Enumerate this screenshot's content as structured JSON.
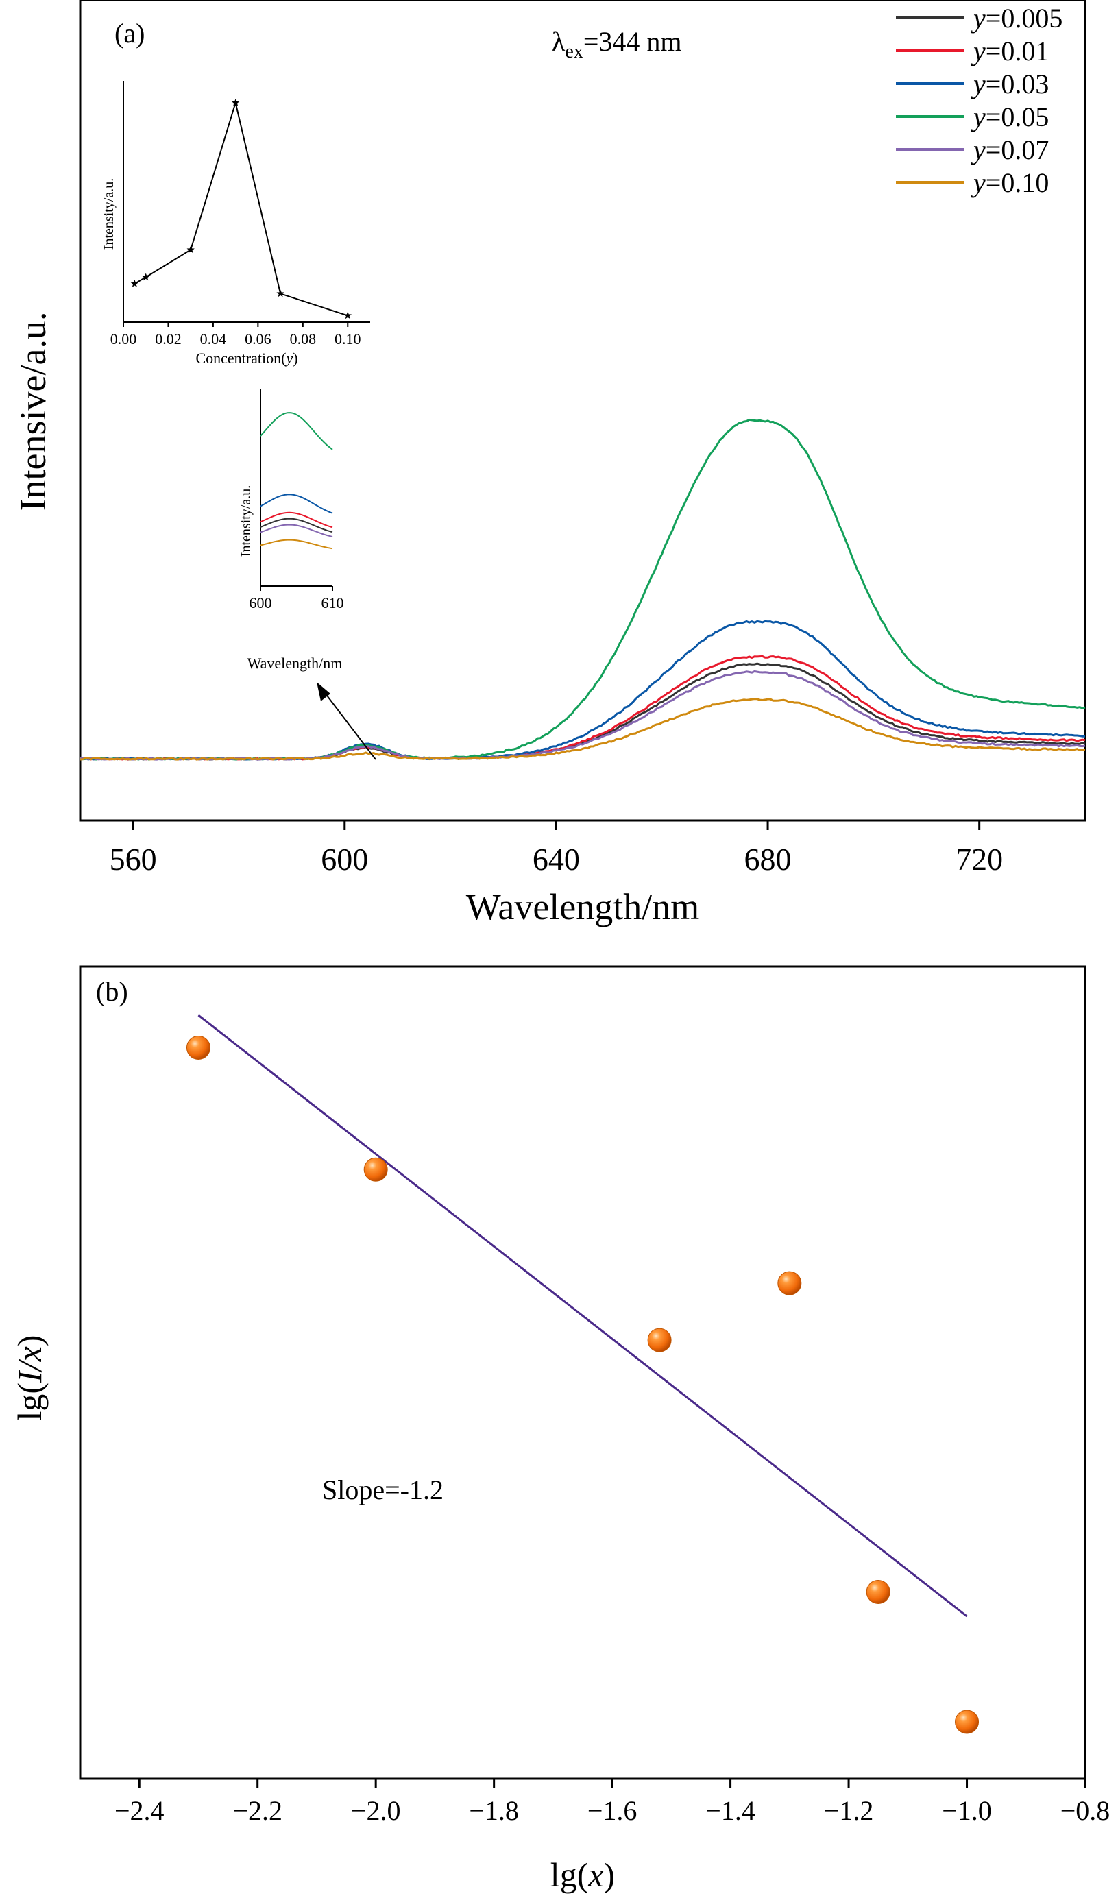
{
  "chart_data": [
    {
      "panel_label": "(a)",
      "type": "line",
      "xlabel": "Wavelength/nm",
      "ylabel": "Intensive/a.u.",
      "xlim": [
        550,
        740
      ],
      "x_ticks": [
        560,
        600,
        640,
        680,
        720
      ],
      "y_ticks_shown": false,
      "annotation": {
        "lambda": "λ",
        "sub": "ex",
        "rest": "=344 nm"
      },
      "legend_position": "top-right",
      "legend_prefix": "y",
      "series": [
        {
          "name": "=0.005",
          "color": "#333333",
          "amp": 0.51,
          "tail": 0.125,
          "s1": 0.06,
          "pk": 0.2
        },
        {
          "name": "=0.01",
          "color": "#e8192c",
          "amp": 0.55,
          "tail": 0.15,
          "s1": 0.065,
          "pk": 0.22
        },
        {
          "name": "=0.03",
          "color": "#0a57a6",
          "amp": 0.74,
          "tail": 0.19,
          "s1": 0.08,
          "pk": 0.28
        },
        {
          "name": "=0.05",
          "color": "#13a05a",
          "amp": 1.83,
          "tail": 0.42,
          "s1": 0.075,
          "pk": 0.55
        },
        {
          "name": "=0.07",
          "color": "#8466b0",
          "amp": 0.47,
          "tail": 0.105,
          "s1": 0.065,
          "pk": 0.18
        },
        {
          "name": "=0.10",
          "color": "#d08a10",
          "amp": 0.32,
          "tail": 0.075,
          "s1": 0.03,
          "pk": 0.13
        }
      ],
      "insets": [
        {
          "type": "line",
          "xlabel": "Concentration(",
          "xlabel_var": "y",
          "xlabel_end": ")",
          "ylabel": "Intensity/a.u.",
          "xlim": [
            0,
            0.11
          ],
          "ylim": [
            0,
            1.1
          ],
          "x_ticks": [
            "0.00",
            "0.02",
            "0.04",
            "0.06",
            "0.08",
            "0.10"
          ],
          "x": [
            0.005,
            0.01,
            0.03,
            0.05,
            0.07,
            0.1
          ],
          "y": [
            0.175,
            0.205,
            0.33,
            1.0,
            0.13,
            0.03
          ]
        },
        {
          "type": "line",
          "xlabel": "Wavelength/nm",
          "ylabel": "Intensity/a.u.",
          "xlim": [
            600,
            610
          ],
          "x_ticks": [
            "600",
            "610"
          ]
        }
      ]
    },
    {
      "panel_label": "(b)",
      "type": "scatter",
      "xlabel": {
        "pre": "lg(",
        "var": "x",
        "post": ")"
      },
      "ylabel": {
        "pre": "lg(",
        "var": "I/x",
        "post": ")"
      },
      "xlim": [
        -2.5,
        -0.8
      ],
      "x_ticks": [
        "−2.4",
        "−2.2",
        "−2.0",
        "−1.8",
        "−1.6",
        "−1.4",
        "−1.2",
        "−1.0",
        "−0.8"
      ],
      "ylim": [
        0,
        1
      ],
      "y_ticks_shown": false,
      "points": [
        {
          "x": -2.3,
          "y": 0.9
        },
        {
          "x": -2.0,
          "y": 0.75
        },
        {
          "x": -1.52,
          "y": 0.54
        },
        {
          "x": -1.3,
          "y": 0.61
        },
        {
          "x": -1.15,
          "y": 0.23
        },
        {
          "x": -1.0,
          "y": 0.07
        }
      ],
      "fit_line": {
        "x": [
          -2.3,
          -1.0
        ],
        "y": [
          0.94,
          0.2
        ],
        "color": "#4a2a8a"
      },
      "annotation": "Slope=-1.2",
      "marker_color": "#f07010"
    }
  ]
}
